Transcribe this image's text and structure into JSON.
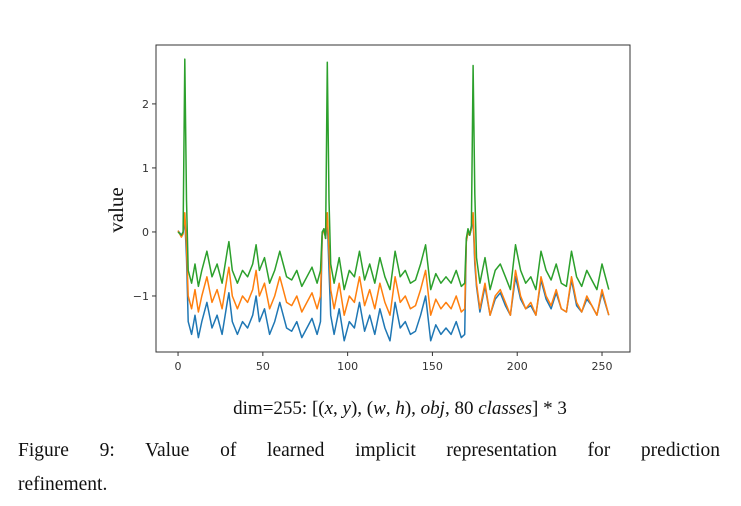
{
  "chart_data": {
    "type": "line",
    "ylabel": "value",
    "xlabel_parts": [
      {
        "text": "dim=255: [(",
        "italic": false
      },
      {
        "text": "x",
        "italic": true
      },
      {
        "text": ", ",
        "italic": false
      },
      {
        "text": "y",
        "italic": true
      },
      {
        "text": "), (",
        "italic": false
      },
      {
        "text": "w",
        "italic": true
      },
      {
        "text": ", ",
        "italic": false
      },
      {
        "text": "h",
        "italic": true
      },
      {
        "text": "), ",
        "italic": false
      },
      {
        "text": "obj",
        "italic": true
      },
      {
        "text": ", 80 ",
        "italic": false
      },
      {
        "text": "classes",
        "italic": true
      },
      {
        "text": "] * 3",
        "italic": false
      }
    ],
    "xlim": [
      -13,
      266.5
    ],
    "ylim": [
      -1.875,
      2.92
    ],
    "x_ticks": [
      0,
      50,
      100,
      150,
      200,
      250
    ],
    "y_ticks": [
      -1,
      0,
      1,
      2
    ],
    "x_tick_labels": [
      "0",
      "50",
      "100",
      "150",
      "200",
      "250"
    ],
    "y_tick_labels": [
      "−1",
      "0",
      "1",
      "2"
    ],
    "grid": false,
    "legend": "none",
    "x": [
      0,
      2,
      3,
      4,
      5,
      6,
      8,
      10,
      12,
      14,
      17,
      20,
      23,
      26,
      29,
      30,
      32,
      35,
      38,
      41,
      44,
      46,
      48,
      51,
      54,
      57,
      60,
      62,
      64,
      67,
      70,
      73,
      76,
      79,
      82,
      84,
      85,
      86,
      87,
      88,
      89,
      90,
      92,
      95,
      98,
      101,
      104,
      107,
      110,
      113,
      116,
      119,
      122,
      125,
      128,
      131,
      134,
      137,
      140,
      143,
      146,
      149,
      152,
      155,
      158,
      161,
      164,
      167,
      169,
      170,
      171,
      172,
      173,
      174,
      175,
      176,
      178,
      181,
      184,
      187,
      190,
      193,
      196,
      199,
      202,
      205,
      208,
      211,
      214,
      217,
      220,
      223,
      226,
      229,
      232,
      235,
      238,
      241,
      244,
      247,
      250,
      254
    ],
    "series": [
      {
        "color": "#1f77b4",
        "values": [
          0.02,
          -0.05,
          0,
          0.2,
          -0.4,
          -1.4,
          -1.6,
          -1.3,
          -1.65,
          -1.4,
          -1.1,
          -1.5,
          -1.3,
          -1.6,
          -1.1,
          -0.95,
          -1.4,
          -1.6,
          -1.4,
          -1.5,
          -1.3,
          -1.0,
          -1.4,
          -1.2,
          -1.6,
          -1.4,
          -1.1,
          -1.3,
          -1.5,
          -1.55,
          -1.4,
          -1.65,
          -1.5,
          -1.35,
          -1.6,
          -1.4,
          -0.05,
          0.05,
          -0.1,
          0.2,
          -0.6,
          -1.3,
          -1.6,
          -1.2,
          -1.7,
          -1.4,
          -1.5,
          -1.1,
          -1.55,
          -1.3,
          -1.6,
          -1.2,
          -1.5,
          -1.7,
          -1.1,
          -1.5,
          -1.4,
          -1.6,
          -1.55,
          -1.3,
          -1.0,
          -1.7,
          -1.45,
          -1.6,
          -1.5,
          -1.6,
          -1.4,
          -1.65,
          -1.6,
          -0.15,
          0,
          -0.05,
          0.05,
          0.2,
          -0.5,
          -0.85,
          -1.25,
          -0.85,
          -1.3,
          -1.05,
          -0.95,
          -1.15,
          -1.3,
          -0.7,
          -1.05,
          -1.2,
          -1.15,
          -1.3,
          -0.75,
          -1.05,
          -1.2,
          -0.95,
          -1.2,
          -1.25,
          -0.75,
          -1.15,
          -1.25,
          -1.05,
          -1.15,
          -1.3,
          -0.95,
          -1.3
        ]
      },
      {
        "color": "#ff7f0e",
        "values": [
          0.02,
          -0.08,
          -0.03,
          0.3,
          -0.2,
          -1.0,
          -1.2,
          -0.9,
          -1.25,
          -1.0,
          -0.7,
          -1.1,
          -0.9,
          -1.2,
          -0.7,
          -0.55,
          -1.0,
          -1.2,
          -1.0,
          -1.1,
          -0.9,
          -0.6,
          -1.0,
          -0.8,
          -1.2,
          -1.0,
          -0.7,
          -0.9,
          -1.1,
          -1.15,
          -1.0,
          -1.25,
          -1.1,
          -0.95,
          -1.2,
          -1.0,
          -0.05,
          0.05,
          -0.1,
          0.3,
          -0.3,
          -0.9,
          -1.2,
          -0.8,
          -1.3,
          -1.0,
          -1.1,
          -0.7,
          -1.15,
          -0.9,
          -1.2,
          -0.8,
          -1.1,
          -1.3,
          -0.7,
          -1.1,
          -1.0,
          -1.2,
          -1.15,
          -0.9,
          -0.6,
          -1.3,
          -1.05,
          -1.2,
          -1.1,
          -1.2,
          -1.0,
          -1.25,
          -1.2,
          -0.15,
          0,
          -0.05,
          0.05,
          0.3,
          -0.4,
          -0.8,
          -1.2,
          -0.8,
          -1.3,
          -1.0,
          -0.9,
          -1.1,
          -1.3,
          -0.6,
          -1.0,
          -1.2,
          -1.1,
          -1.3,
          -0.7,
          -1.0,
          -1.15,
          -0.9,
          -1.2,
          -1.25,
          -0.7,
          -1.1,
          -1.25,
          -1.0,
          -1.15,
          -1.3,
          -0.9,
          -1.3
        ]
      },
      {
        "color": "#2ca02c",
        "values": [
          0,
          -0.05,
          0,
          2.7,
          0.5,
          -0.6,
          -0.8,
          -0.5,
          -0.85,
          -0.6,
          -0.3,
          -0.7,
          -0.5,
          -0.8,
          -0.3,
          -0.15,
          -0.6,
          -0.8,
          -0.6,
          -0.7,
          -0.5,
          -0.2,
          -0.6,
          -0.4,
          -0.8,
          -0.6,
          -0.3,
          -0.5,
          -0.7,
          -0.75,
          -0.6,
          -0.85,
          -0.7,
          -0.55,
          -0.8,
          -0.6,
          0,
          0.05,
          -0.1,
          2.65,
          0.5,
          -0.5,
          -0.8,
          -0.4,
          -0.9,
          -0.6,
          -0.7,
          -0.3,
          -0.75,
          -0.5,
          -0.8,
          -0.4,
          -0.7,
          -0.9,
          -0.3,
          -0.7,
          -0.6,
          -0.8,
          -0.75,
          -0.5,
          -0.2,
          -0.9,
          -0.65,
          -0.8,
          -0.7,
          -0.8,
          -0.6,
          -0.85,
          -0.8,
          -0.1,
          0.05,
          -0.05,
          0.1,
          2.6,
          0.6,
          -0.4,
          -0.8,
          -0.4,
          -0.9,
          -0.6,
          -0.5,
          -0.7,
          -0.9,
          -0.2,
          -0.6,
          -0.8,
          -0.7,
          -0.9,
          -0.3,
          -0.6,
          -0.75,
          -0.5,
          -0.8,
          -0.85,
          -0.3,
          -0.7,
          -0.85,
          -0.6,
          -0.75,
          -0.9,
          -0.5,
          -0.9
        ]
      }
    ]
  },
  "caption": {
    "line1": "Figure 9:  Value of learned implicit representation for prediction",
    "line2": "refinement."
  }
}
